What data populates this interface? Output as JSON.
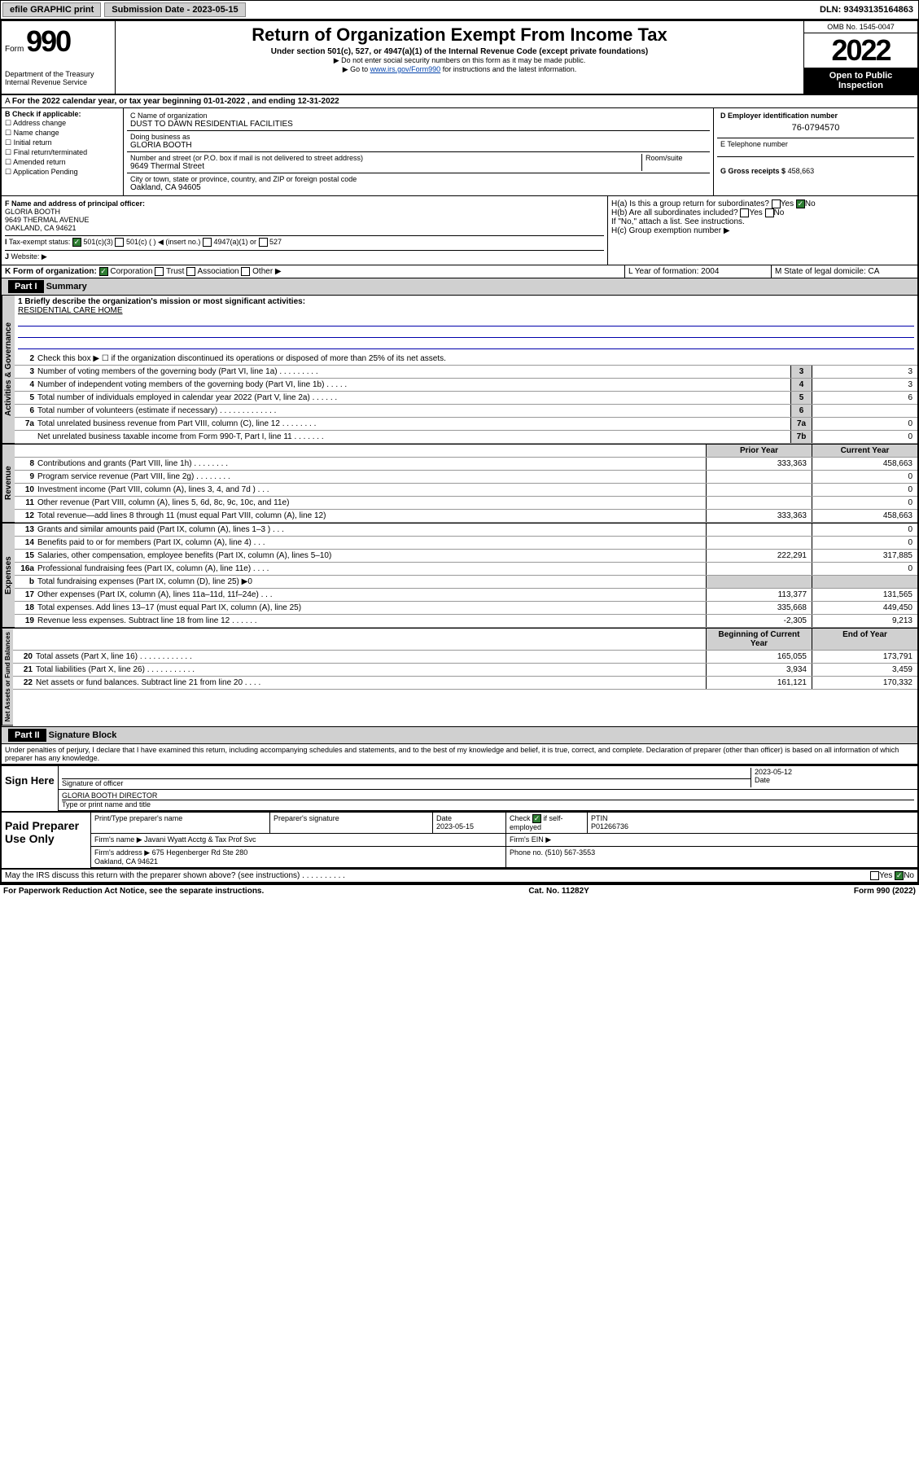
{
  "topbar": {
    "efile": "efile GRAPHIC print",
    "submission_label": "Submission Date - 2023-05-15",
    "dln": "DLN: 93493135164863"
  },
  "header": {
    "form_word": "Form",
    "form_number": "990",
    "title": "Return of Organization Exempt From Income Tax",
    "subtitle": "Under section 501(c), 527, or 4947(a)(1) of the Internal Revenue Code (except private foundations)",
    "note1": "▶ Do not enter social security numbers on this form as it may be made public.",
    "note2_pre": "▶ Go to ",
    "note2_link": "www.irs.gov/Form990",
    "note2_post": " for instructions and the latest information.",
    "dept": "Department of the Treasury\nInternal Revenue Service",
    "omb": "OMB No. 1545-0047",
    "year": "2022",
    "open": "Open to Public Inspection"
  },
  "period": "For the 2022 calendar year, or tax year beginning 01-01-2022    , and ending 12-31-2022",
  "blockB": {
    "label": "B Check if applicable:",
    "items": [
      "Address change",
      "Name change",
      "Initial return",
      "Final return/terminated",
      "Amended return",
      "Application Pending"
    ]
  },
  "blockC": {
    "name_label": "C Name of organization",
    "name": "DUST TO DAWN RESIDENTIAL FACILITIES",
    "dba_label": "Doing business as",
    "dba": "GLORIA BOOTH",
    "street_label": "Number and street (or P.O. box if mail is not delivered to street address)",
    "room_label": "Room/suite",
    "street": "9649 Thermal Street",
    "city_label": "City or town, state or province, country, and ZIP or foreign postal code",
    "city": "Oakland, CA  94605"
  },
  "blockD": {
    "label": "D Employer identification number",
    "value": "76-0794570",
    "e_label": "E Telephone number",
    "e_value": "",
    "g_label": "G Gross receipts $",
    "g_value": "458,663"
  },
  "blockF": {
    "label": "F Name and address of principal officer:",
    "name": "GLORIA BOOTH",
    "street": "9649 THERMAL AVENUE",
    "city": "OAKLAND, CA  94621"
  },
  "blockH": {
    "ha": "H(a)  Is this a group return for subordinates?",
    "hb": "H(b)  Are all subordinates included?",
    "hnote": "If \"No,\" attach a list. See instructions.",
    "hc": "H(c)  Group exemption number ▶",
    "yes": "Yes",
    "no": "No"
  },
  "taxexempt": {
    "label": "Tax-exempt status:",
    "opt1": "501(c)(3)",
    "opt2": "501(c) (  ) ◀ (insert no.)",
    "opt3": "4947(a)(1) or",
    "opt4": "527"
  },
  "website_label": "Website: ▶",
  "formK": {
    "label": "K Form of organization:",
    "opts": [
      "Corporation",
      "Trust",
      "Association",
      "Other ▶"
    ],
    "L": "L Year of formation: 2004",
    "M": "M State of legal domicile: CA"
  },
  "part1": {
    "hdr": "Part I",
    "title": "Summary",
    "mission_label": "1  Briefly describe the organization's mission or most significant activities:",
    "mission": "RESIDENTIAL CARE HOME",
    "line2": "Check this box ▶ ☐  if the organization discontinued its operations or disposed of more than 25% of its net assets."
  },
  "gov_lines": [
    {
      "n": "3",
      "d": "Number of voting members of the governing body (Part VI, line 1a)   .   .   .   .   .   .   .   .   .",
      "b": "3",
      "v": "3"
    },
    {
      "n": "4",
      "d": "Number of independent voting members of the governing body (Part VI, line 1b)   .   .   .   .   .",
      "b": "4",
      "v": "3"
    },
    {
      "n": "5",
      "d": "Total number of individuals employed in calendar year 2022 (Part V, line 2a)   .   .   .   .   .   .",
      "b": "5",
      "v": "6"
    },
    {
      "n": "6",
      "d": "Total number of volunteers (estimate if necessary)   .   .   .   .   .   .   .   .   .   .   .   .   .",
      "b": "6",
      "v": ""
    },
    {
      "n": "7a",
      "d": "Total unrelated business revenue from Part VIII, column (C), line 12   .   .   .   .   .   .   .   .",
      "b": "7a",
      "v": "0"
    },
    {
      "n": "",
      "d": "Net unrelated business taxable income from Form 990-T, Part I, line 11   .   .   .   .   .   .   .",
      "b": "7b",
      "v": "0"
    }
  ],
  "rev_hdr": {
    "prior": "Prior Year",
    "current": "Current Year"
  },
  "rev_lines": [
    {
      "n": "8",
      "d": "Contributions and grants (Part VIII, line 1h)   .   .   .   .   .   .   .   .",
      "p": "333,363",
      "c": "458,663"
    },
    {
      "n": "9",
      "d": "Program service revenue (Part VIII, line 2g)   .   .   .   .   .   .   .   .",
      "p": "",
      "c": "0"
    },
    {
      "n": "10",
      "d": "Investment income (Part VIII, column (A), lines 3, 4, and 7d )   .   .   .",
      "p": "",
      "c": "0"
    },
    {
      "n": "11",
      "d": "Other revenue (Part VIII, column (A), lines 5, 6d, 8c, 9c, 10c, and 11e)",
      "p": "",
      "c": "0"
    },
    {
      "n": "12",
      "d": "Total revenue—add lines 8 through 11 (must equal Part VIII, column (A), line 12)",
      "p": "333,363",
      "c": "458,663"
    }
  ],
  "exp_lines": [
    {
      "n": "13",
      "d": "Grants and similar amounts paid (Part IX, column (A), lines 1–3 )   .   .   .",
      "p": "",
      "c": "0"
    },
    {
      "n": "14",
      "d": "Benefits paid to or for members (Part IX, column (A), line 4)   .   .   .",
      "p": "",
      "c": "0"
    },
    {
      "n": "15",
      "d": "Salaries, other compensation, employee benefits (Part IX, column (A), lines 5–10)",
      "p": "222,291",
      "c": "317,885"
    },
    {
      "n": "16a",
      "d": "Professional fundraising fees (Part IX, column (A), line 11e)   .   .   .   .",
      "p": "",
      "c": "0"
    },
    {
      "n": "b",
      "d": "Total fundraising expenses (Part IX, column (D), line 25) ▶0",
      "p": "—",
      "c": "—"
    },
    {
      "n": "17",
      "d": "Other expenses (Part IX, column (A), lines 11a–11d, 11f–24e)   .   .   .",
      "p": "113,377",
      "c": "131,565"
    },
    {
      "n": "18",
      "d": "Total expenses. Add lines 13–17 (must equal Part IX, column (A), line 25)",
      "p": "335,668",
      "c": "449,450"
    },
    {
      "n": "19",
      "d": "Revenue less expenses. Subtract line 18 from line 12   .   .   .   .   .   .",
      "p": "-2,305",
      "c": "9,213"
    }
  ],
  "net_hdr": {
    "beg": "Beginning of Current Year",
    "end": "End of Year"
  },
  "net_lines": [
    {
      "n": "20",
      "d": "Total assets (Part X, line 16)   .   .   .   .   .   .   .   .   .   .   .   .",
      "p": "165,055",
      "c": "173,791"
    },
    {
      "n": "21",
      "d": "Total liabilities (Part X, line 26)   .   .   .   .   .   .   .   .   .   .   .",
      "p": "3,934",
      "c": "3,459"
    },
    {
      "n": "22",
      "d": "Net assets or fund balances. Subtract line 21 from line 20   .   .   .   .",
      "p": "161,121",
      "c": "170,332"
    }
  ],
  "part2": {
    "hdr": "Part II",
    "title": "Signature Block"
  },
  "penalties": "Under penalties of perjury, I declare that I have examined this return, including accompanying schedules and statements, and to the best of my knowledge and belief, it is true, correct, and complete. Declaration of preparer (other than officer) is based on all information of which preparer has any knowledge.",
  "sign": {
    "label": "Sign Here",
    "sig_label": "Signature of officer",
    "date": "2023-05-12",
    "date_label": "Date",
    "name": "GLORIA BOOTH  DIRECTOR",
    "name_label": "Type or print name and title"
  },
  "paid": {
    "label": "Paid Preparer Use Only",
    "h1": "Print/Type preparer's name",
    "h2": "Preparer's signature",
    "h3": "Date",
    "h3v": "2023-05-15",
    "h4a": "Check",
    "h4b": "if self-employed",
    "h5": "PTIN",
    "h5v": "P01266736",
    "firm_label": "Firm's name    ▶",
    "firm": "Javani Wyatt Acctg & Tax Prof Svc",
    "ein_label": "Firm's EIN ▶",
    "addr_label": "Firm's address ▶",
    "addr1": "675 Hegenberger Rd Ste 280",
    "addr2": "Oakland, CA  94621",
    "phone_label": "Phone no.",
    "phone": "(510) 567-3553"
  },
  "discuss": "May the IRS discuss this return with the preparer shown above? (see instructions)   .   .   .   .   .   .   .   .   .   .",
  "footer": {
    "left": "For Paperwork Reduction Act Notice, see the separate instructions.",
    "mid": "Cat. No. 11282Y",
    "right": "Form 990 (2022)"
  },
  "section_labels": {
    "gov": "Activities & Governance",
    "rev": "Revenue",
    "exp": "Expenses",
    "net": "Net Assets or Fund Balances"
  }
}
